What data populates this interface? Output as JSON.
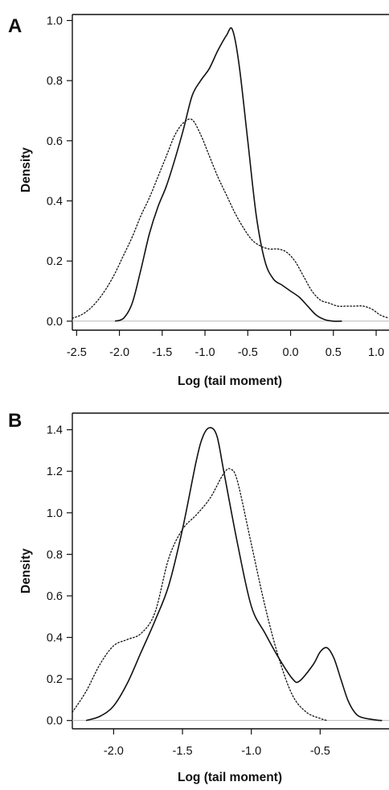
{
  "chart_data": [
    {
      "type": "line",
      "panel": "A",
      "title": "",
      "xlabel": "Log (tail moment)",
      "ylabel": "Density",
      "xlim": [
        -2.55,
        1.15
      ],
      "ylim": [
        -0.03,
        1.02
      ],
      "xticks": [
        -2.5,
        -2.0,
        -1.5,
        -1.0,
        -0.5,
        0.0,
        0.5,
        1.0
      ],
      "xtick_labels": [
        "-2.5",
        "-2.0",
        "-1.5",
        "-1.0",
        "-0.5",
        "0.0",
        "0.5",
        "1.0"
      ],
      "yticks": [
        0.0,
        0.2,
        0.4,
        0.6,
        0.8,
        1.0
      ],
      "ytick_labels": [
        "0.0",
        "0.2",
        "0.4",
        "0.6",
        "0.8",
        "1.0"
      ],
      "baseline": 0,
      "legend": "none",
      "grid": false,
      "series": [
        {
          "style": "solid",
          "x": [
            -2.05,
            -1.95,
            -1.85,
            -1.75,
            -1.65,
            -1.55,
            -1.45,
            -1.35,
            -1.25,
            -1.15,
            -1.05,
            -0.95,
            -0.85,
            -0.75,
            -0.68,
            -0.6,
            -0.5,
            -0.4,
            -0.3,
            -0.2,
            -0.1,
            0.0,
            0.1,
            0.2,
            0.3,
            0.4,
            0.5,
            0.6
          ],
          "y": [
            0.0,
            0.01,
            0.06,
            0.17,
            0.29,
            0.38,
            0.45,
            0.54,
            0.64,
            0.75,
            0.8,
            0.84,
            0.9,
            0.95,
            0.97,
            0.85,
            0.6,
            0.35,
            0.2,
            0.14,
            0.12,
            0.1,
            0.08,
            0.05,
            0.02,
            0.005,
            0.0,
            0.0
          ]
        },
        {
          "style": "dotted",
          "x": [
            -2.55,
            -2.45,
            -2.35,
            -2.25,
            -2.15,
            -2.05,
            -1.95,
            -1.85,
            -1.75,
            -1.65,
            -1.55,
            -1.45,
            -1.35,
            -1.25,
            -1.15,
            -1.05,
            -0.95,
            -0.85,
            -0.75,
            -0.65,
            -0.55,
            -0.45,
            -0.35,
            -0.25,
            -0.15,
            -0.05,
            0.05,
            0.15,
            0.25,
            0.35,
            0.45,
            0.55,
            0.65,
            0.75,
            0.85,
            0.95,
            1.05,
            1.15
          ],
          "y": [
            0.01,
            0.02,
            0.04,
            0.07,
            0.11,
            0.16,
            0.22,
            0.28,
            0.35,
            0.41,
            0.48,
            0.55,
            0.62,
            0.66,
            0.67,
            0.62,
            0.55,
            0.48,
            0.42,
            0.36,
            0.31,
            0.27,
            0.25,
            0.24,
            0.24,
            0.23,
            0.2,
            0.15,
            0.1,
            0.07,
            0.06,
            0.05,
            0.05,
            0.05,
            0.05,
            0.04,
            0.02,
            0.01
          ]
        }
      ]
    },
    {
      "type": "line",
      "panel": "B",
      "title": "",
      "xlabel": "Log (tail moment)",
      "ylabel": "Density",
      "xlim": [
        -2.3,
        0.0
      ],
      "ylim": [
        -0.04,
        1.48
      ],
      "xticks": [
        -2.0,
        -1.5,
        -1.0,
        -0.5
      ],
      "xtick_labels": [
        "-2.0",
        "-1.5",
        "-1.0",
        "-0.5"
      ],
      "yticks": [
        0.0,
        0.2,
        0.4,
        0.6,
        0.8,
        1.0,
        1.2,
        1.4
      ],
      "ytick_labels": [
        "0.0",
        "0.2",
        "0.4",
        "0.6",
        "0.8",
        "1.0",
        "1.2",
        "1.4"
      ],
      "baseline": 0,
      "legend": "none",
      "grid": false,
      "series": [
        {
          "style": "solid",
          "x": [
            -2.2,
            -2.1,
            -2.0,
            -1.9,
            -1.8,
            -1.7,
            -1.6,
            -1.5,
            -1.4,
            -1.35,
            -1.3,
            -1.25,
            -1.2,
            -1.1,
            -1.0,
            -0.9,
            -0.8,
            -0.7,
            -0.65,
            -0.55,
            -0.5,
            -0.45,
            -0.4,
            -0.35,
            -0.3,
            -0.25,
            -0.2,
            -0.1,
            -0.05
          ],
          "y": [
            0.0,
            0.02,
            0.07,
            0.18,
            0.33,
            0.48,
            0.65,
            0.92,
            1.25,
            1.37,
            1.41,
            1.37,
            1.2,
            0.85,
            0.55,
            0.42,
            0.3,
            0.2,
            0.19,
            0.27,
            0.33,
            0.35,
            0.3,
            0.2,
            0.1,
            0.04,
            0.015,
            0.003,
            0.0
          ]
        },
        {
          "style": "dotted",
          "x": [
            -2.3,
            -2.2,
            -2.1,
            -2.0,
            -1.9,
            -1.8,
            -1.7,
            -1.6,
            -1.5,
            -1.4,
            -1.3,
            -1.2,
            -1.15,
            -1.1,
            -1.0,
            -0.9,
            -0.8,
            -0.7,
            -0.6,
            -0.5,
            -0.45
          ],
          "y": [
            0.04,
            0.14,
            0.27,
            0.36,
            0.39,
            0.42,
            0.52,
            0.78,
            0.92,
            0.99,
            1.07,
            1.19,
            1.21,
            1.15,
            0.85,
            0.55,
            0.3,
            0.12,
            0.04,
            0.01,
            0.0
          ]
        }
      ]
    }
  ]
}
